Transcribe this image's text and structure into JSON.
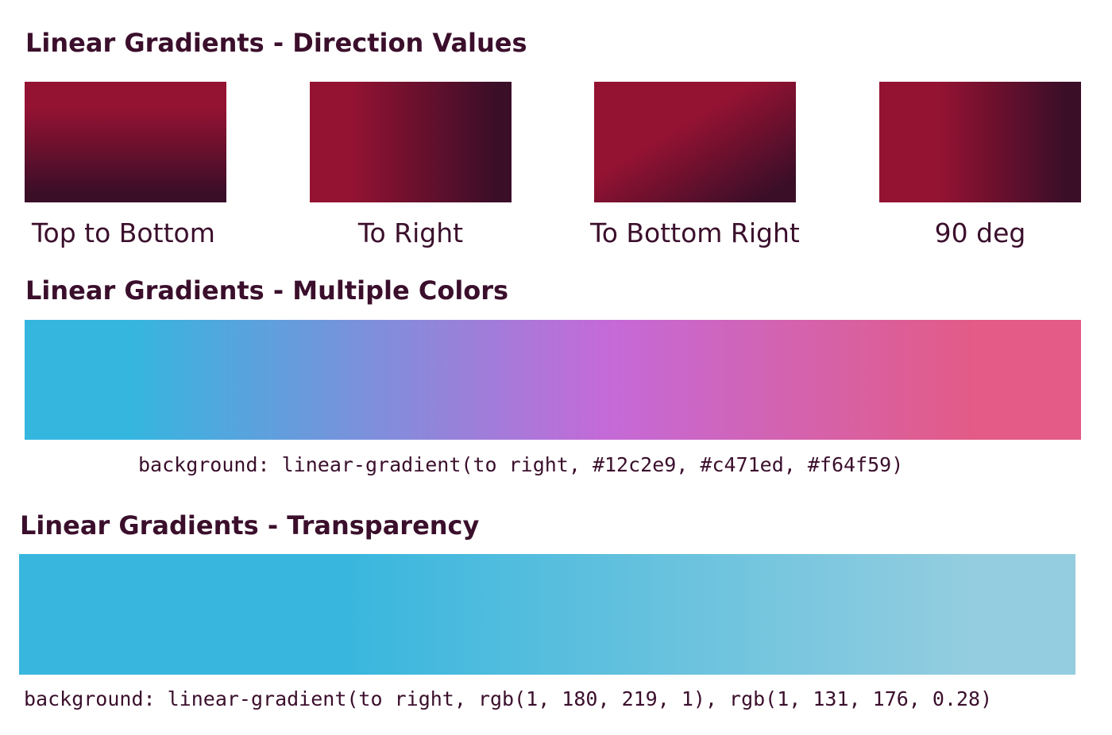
{
  "sections": {
    "direction": {
      "title": "Linear Gradients - Direction Values",
      "swatches": [
        {
          "label": "Top to Bottom"
        },
        {
          "label": "To Right"
        },
        {
          "label": "To Bottom Right"
        },
        {
          "label": "90 deg"
        }
      ],
      "colors": {
        "start": "#941232",
        "end": "#3b0e28"
      }
    },
    "multiple": {
      "title": "Linear Gradients - Multiple Colors",
      "code": "background: linear-gradient(to right, #12c2e9, #c471ed, #f64f59)",
      "colors": [
        "#35b6df",
        "#c46ad8",
        "#e35b86"
      ]
    },
    "transparency": {
      "title": "Linear Gradients - Transparency",
      "code": "background: linear-gradient(to right, rgb(1, 180, 219, 1), rgb(1, 131, 176, 0.28)",
      "colors": [
        "#38b6de",
        "#93cddf"
      ]
    }
  }
}
